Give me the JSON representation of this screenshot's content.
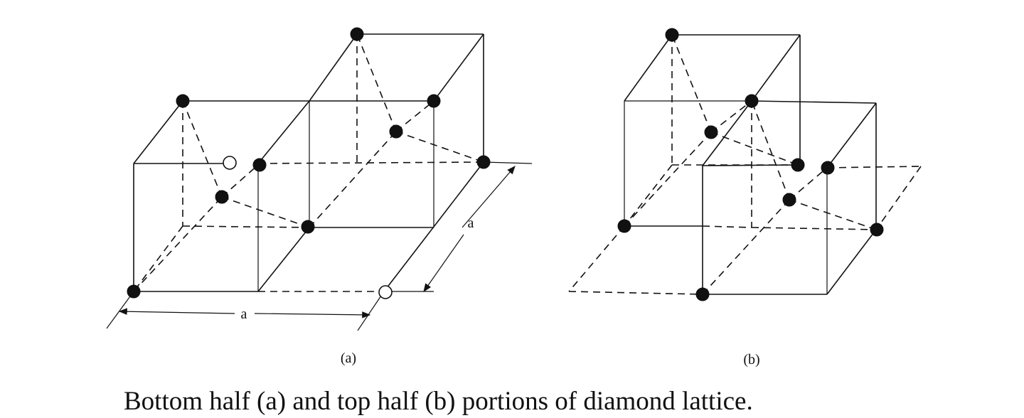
{
  "panels": [
    {
      "label": "(a)"
    },
    {
      "label": "(b)"
    }
  ],
  "dimensions": {
    "width_label": "a",
    "depth_label": "a"
  },
  "caption": "Bottom half (a) and top half (b) portions of diamond lattice."
}
